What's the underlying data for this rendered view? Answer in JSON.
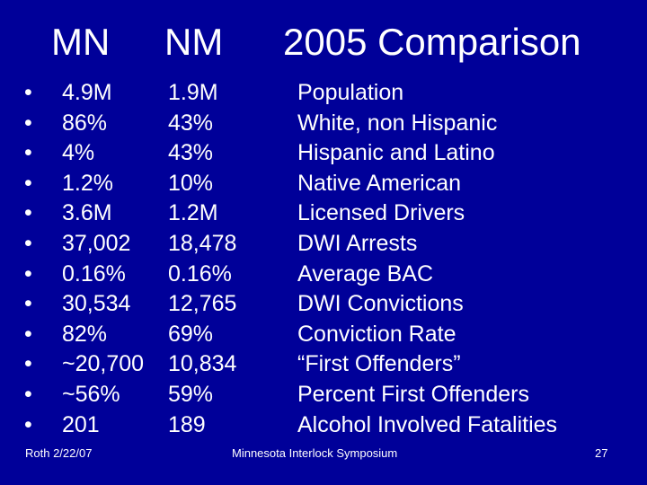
{
  "slide": {
    "headers": {
      "mn": "MN",
      "nm": "NM",
      "comparison": "2005 Comparison"
    },
    "bullet": "•",
    "rows": [
      {
        "mn": "4.9M",
        "nm": "1.9M",
        "label": "Population"
      },
      {
        "mn": "86%",
        "nm": "43%",
        "label": "White, non Hispanic"
      },
      {
        "mn": "4%",
        "nm": "43%",
        "label": "Hispanic and Latino"
      },
      {
        "mn": "1.2%",
        "nm": "10%",
        "label": "Native American"
      },
      {
        "mn": "3.6M",
        "nm": "1.2M",
        "label": "Licensed Drivers"
      },
      {
        "mn": "37,002",
        "nm": "18,478",
        "label": "DWI Arrests"
      },
      {
        "mn": "0.16%",
        "nm": "0.16%",
        "label": "Average BAC"
      },
      {
        "mn": "30,534",
        "nm": "12,765",
        "label": "DWI Convictions"
      },
      {
        "mn": "82%",
        "nm": "69%",
        "label": "Conviction Rate"
      },
      {
        "mn": "~20,700",
        "nm": "10,834",
        "label": "“First Offenders”"
      },
      {
        "mn": "~56%",
        "nm": "59%",
        "label": "Percent First Offenders"
      },
      {
        "mn": "201",
        "nm": "189",
        "label": "Alcohol Involved Fatalities"
      }
    ],
    "footer": {
      "left": "Roth 2/22/07",
      "center": "Minnesota Interlock Symposium",
      "page": "27"
    }
  },
  "colors": {
    "background": "#000099",
    "text": "#ffffff"
  }
}
